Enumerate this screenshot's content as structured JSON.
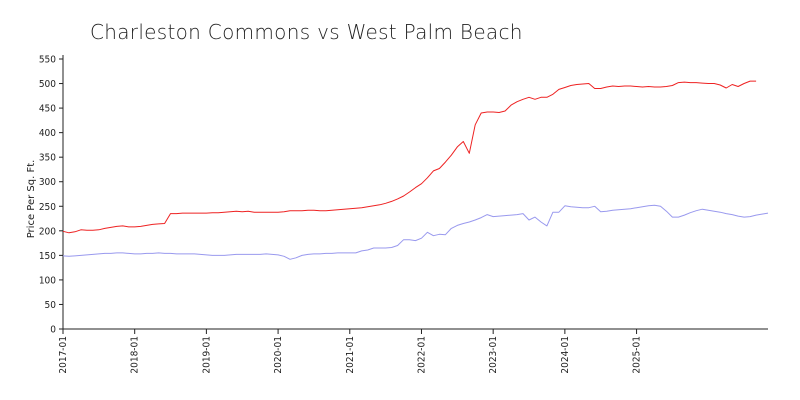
{
  "chart_data": {
    "type": "line",
    "title": "Charleston Commons vs West Palm Beach",
    "xlabel": "",
    "ylabel": "Price Per Sq. Ft.",
    "ylim": [
      0,
      550
    ],
    "yticks": [
      0,
      50,
      100,
      150,
      200,
      250,
      300,
      350,
      400,
      450,
      500,
      550
    ],
    "xticks": [
      "2017-01",
      "2018-01",
      "2019-01",
      "2020-01",
      "2021-01",
      "2022-01",
      "2023-01",
      "2024-01",
      "2025-01"
    ],
    "x_start": "2017-01",
    "grid": false,
    "colors": [
      "#ee2222",
      "#9999ee"
    ],
    "series": [
      {
        "values": [
          199,
          196,
          198,
          202,
          201,
          201,
          202,
          205,
          207,
          209,
          210,
          208,
          208,
          209,
          211,
          213,
          214,
          215,
          235,
          235,
          236,
          236,
          236,
          236,
          236,
          237,
          237,
          238,
          239,
          240,
          239,
          240,
          238,
          238,
          238,
          238,
          238,
          239,
          241,
          241,
          241,
          242,
          242,
          241,
          241,
          242,
          243,
          244,
          245,
          246,
          247,
          249,
          251,
          253,
          256,
          260,
          265,
          271,
          279,
          288,
          296,
          308,
          322,
          327,
          340,
          354,
          371,
          382,
          358,
          416,
          440,
          442,
          442,
          441,
          444,
          456,
          463,
          468,
          472,
          468,
          472,
          472,
          478,
          488,
          492,
          496,
          498,
          499,
          500,
          490,
          490,
          493,
          495,
          494,
          495,
          495,
          494,
          493,
          494,
          493,
          493,
          494,
          496,
          502,
          503,
          502,
          502,
          501,
          500,
          500,
          497,
          491,
          498,
          494,
          500,
          505,
          505
        ]
      },
      {
        "values": [
          149,
          148,
          149,
          150,
          151,
          152,
          153,
          154,
          154,
          155,
          155,
          154,
          153,
          153,
          154,
          154,
          155,
          154,
          154,
          153,
          153,
          153,
          153,
          152,
          151,
          150,
          150,
          150,
          151,
          152,
          152,
          152,
          152,
          152,
          153,
          152,
          151,
          148,
          142,
          145,
          150,
          152,
          153,
          153,
          154,
          154,
          155,
          155,
          155,
          155,
          159,
          161,
          165,
          165,
          165,
          166,
          170,
          182,
          182,
          180,
          185,
          197,
          190,
          193,
          192,
          205,
          211,
          215,
          218,
          222,
          227,
          233,
          229,
          230,
          231,
          232,
          233,
          235,
          222,
          228,
          218,
          210,
          238,
          238,
          251,
          249,
          248,
          247,
          247,
          250,
          239,
          240,
          242,
          243,
          244,
          245,
          247,
          249,
          251,
          252,
          250,
          240,
          228,
          228,
          232,
          237,
          241,
          244,
          242,
          240,
          238,
          235,
          233,
          230,
          228,
          229,
          232,
          234,
          236
        ]
      }
    ]
  }
}
